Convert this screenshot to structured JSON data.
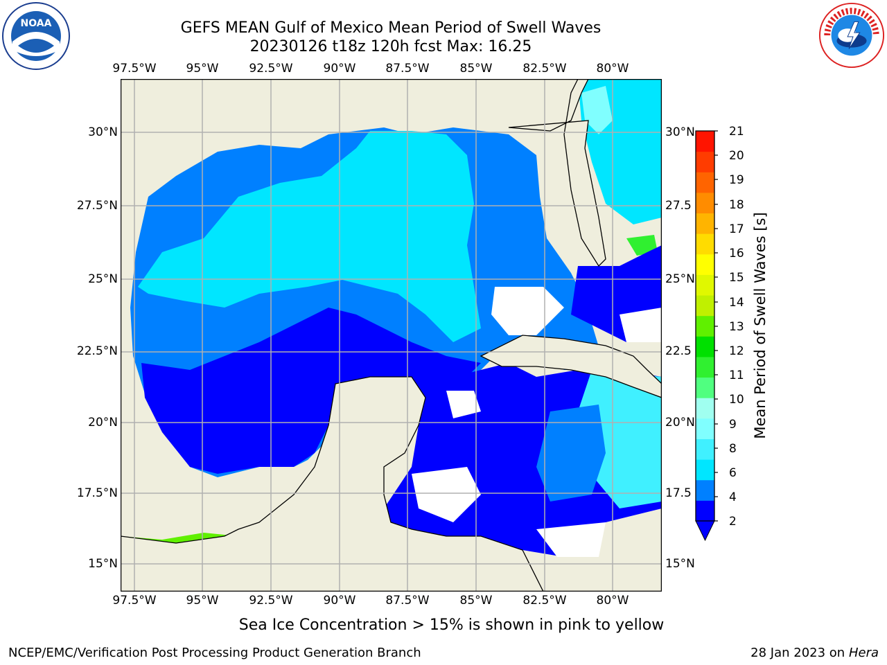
{
  "header": {
    "title_line1": "GEFS MEAN Gulf of Mexico Mean Period of Swell Waves",
    "title_line2": "20230126 t18z 120h fcst   Max: 16.25"
  },
  "logos": {
    "left": "NOAA",
    "right": "NATIONAL WEATHER SERVICE"
  },
  "map": {
    "lon_labels": [
      "97.5°W",
      "95°W",
      "92.5°W",
      "90°W",
      "87.5°W",
      "85°W",
      "82.5°W",
      "80°W"
    ],
    "lat_labels_left": [
      "30°N",
      "27.5°N",
      "25°N",
      "22.5°N",
      "20°N",
      "17.5°N",
      "15°N"
    ],
    "lat_labels_right": [
      "30°N",
      "27.5",
      "25°N",
      "22.5",
      "20°N",
      "17.5",
      "15°N"
    ],
    "land_color": "#efeedd",
    "grid_color": "#b0b0b0"
  },
  "colorbar": {
    "label": "Mean Period of Swell Waves [s]",
    "ticks": [
      "21",
      "20",
      "19",
      "18",
      "17",
      "16",
      "15",
      "14",
      "13",
      "12",
      "11",
      "10",
      "9",
      "8",
      "6",
      "4",
      "2"
    ],
    "colors": [
      "#0000ff",
      "#0080ff",
      "#00e6ff",
      "#40f0ff",
      "#80ffff",
      "#a0fff0",
      "#50ff80",
      "#30f030",
      "#00e000",
      "#60f000",
      "#c0f000",
      "#e0f800",
      "#ffff00",
      "#ffdc00",
      "#ffb400",
      "#ff8c00",
      "#ff6400",
      "#ff3c00",
      "#ff1400"
    ]
  },
  "note": "Sea Ice Concentration > 15% is shown in pink to yellow",
  "footer": {
    "left": "NCEP/EMC/Verification Post Processing Product Generation Branch",
    "right_date": "28 Jan 2023 on ",
    "right_host": "Hera"
  }
}
